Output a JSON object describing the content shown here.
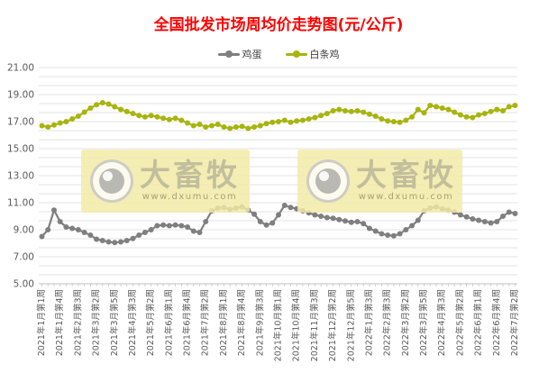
{
  "title": "全国批发市场周均价走势图(元/公斤)",
  "watermark": {
    "brand": "大畜牧",
    "url": "www.dxumu.com"
  },
  "colors": {
    "title_red": "#FF0000",
    "egg_gray": "#7F7F7F",
    "chicken_green": "#A8B40F",
    "grid": "#E3E3E3",
    "axis_line": "#BFBFBF",
    "axis_text": "#595959",
    "watermark_bg": "#F2EBA6"
  },
  "chart_data": {
    "type": "line",
    "title": "全国批发市场周均价走势图(元/公斤)",
    "xlabel": "",
    "ylabel": "",
    "ylim": [
      5,
      21
    ],
    "grid": true,
    "legend_position": "top",
    "y_ticks": [
      "21.00",
      "19.00",
      "17.00",
      "15.00",
      "13.00",
      "11.00",
      "9.00",
      "7.00",
      "5.00"
    ],
    "label_interval": 3,
    "n_points": 79,
    "x_tick_labels": [
      "2021年1月第1周",
      "2021年1月第4周",
      "2021年2月第3周",
      "2021年3月第2周",
      "2021年3月第5周",
      "2021年4月第3周",
      "2021年5月第2周",
      "2021年6月第1周",
      "2021年6月第4周",
      "2021年7月第2周",
      "2021年8月第1周",
      "2021年8月第4周",
      "2021年9月第3周",
      "2021年10月第1周",
      "2021年10月第4周",
      "2021年11月第3周",
      "2021年12月第2周",
      "2021年12月第5周",
      "2022年1月第3周",
      "2022年2月第3周",
      "2022年3月第2周",
      "2022年3月第5周",
      "2022年4月第3周",
      "2022年5月第2周",
      "2022年6月第1周",
      "2022年6月第4周",
      "2022年7月第2周"
    ],
    "series": [
      {
        "id": "egg",
        "name": "鸡蛋",
        "color": "#7F7F7F",
        "values": [
          8.5,
          9.0,
          10.45,
          9.6,
          9.2,
          9.1,
          9.0,
          8.8,
          8.6,
          8.3,
          8.2,
          8.1,
          8.05,
          8.1,
          8.2,
          8.35,
          8.6,
          8.8,
          9.0,
          9.3,
          9.35,
          9.3,
          9.35,
          9.3,
          9.2,
          8.9,
          8.8,
          9.6,
          10.4,
          10.6,
          10.65,
          10.5,
          10.6,
          10.7,
          10.45,
          10.15,
          9.6,
          9.35,
          9.5,
          10.1,
          10.8,
          10.65,
          10.55,
          10.4,
          10.25,
          10.1,
          10.0,
          9.9,
          9.85,
          9.75,
          9.65,
          9.55,
          9.6,
          9.45,
          9.1,
          8.9,
          8.7,
          8.6,
          8.55,
          8.7,
          9.0,
          9.3,
          9.7,
          10.4,
          10.6,
          10.7,
          10.55,
          10.45,
          10.3,
          10.1,
          9.95,
          9.8,
          9.7,
          9.6,
          9.5,
          9.6,
          10.0,
          10.3,
          10.2
        ]
      },
      {
        "id": "chicken",
        "name": "白条鸡",
        "color": "#A8B40F",
        "values": [
          16.7,
          16.6,
          16.75,
          16.9,
          17.0,
          17.2,
          17.4,
          17.7,
          18.0,
          18.25,
          18.4,
          18.3,
          18.1,
          17.9,
          17.75,
          17.6,
          17.45,
          17.35,
          17.45,
          17.35,
          17.25,
          17.15,
          17.25,
          17.1,
          16.9,
          16.7,
          16.8,
          16.6,
          16.7,
          16.8,
          16.6,
          16.5,
          16.6,
          16.65,
          16.5,
          16.6,
          16.7,
          16.85,
          16.95,
          17.0,
          17.1,
          16.95,
          17.05,
          17.1,
          17.2,
          17.3,
          17.45,
          17.6,
          17.8,
          17.9,
          17.8,
          17.75,
          17.8,
          17.7,
          17.55,
          17.4,
          17.2,
          17.05,
          17.0,
          16.95,
          17.1,
          17.35,
          17.9,
          17.65,
          18.2,
          18.1,
          18.0,
          17.9,
          17.7,
          17.5,
          17.35,
          17.3,
          17.5,
          17.6,
          17.75,
          17.9,
          17.8,
          18.1,
          18.2
        ]
      }
    ]
  }
}
